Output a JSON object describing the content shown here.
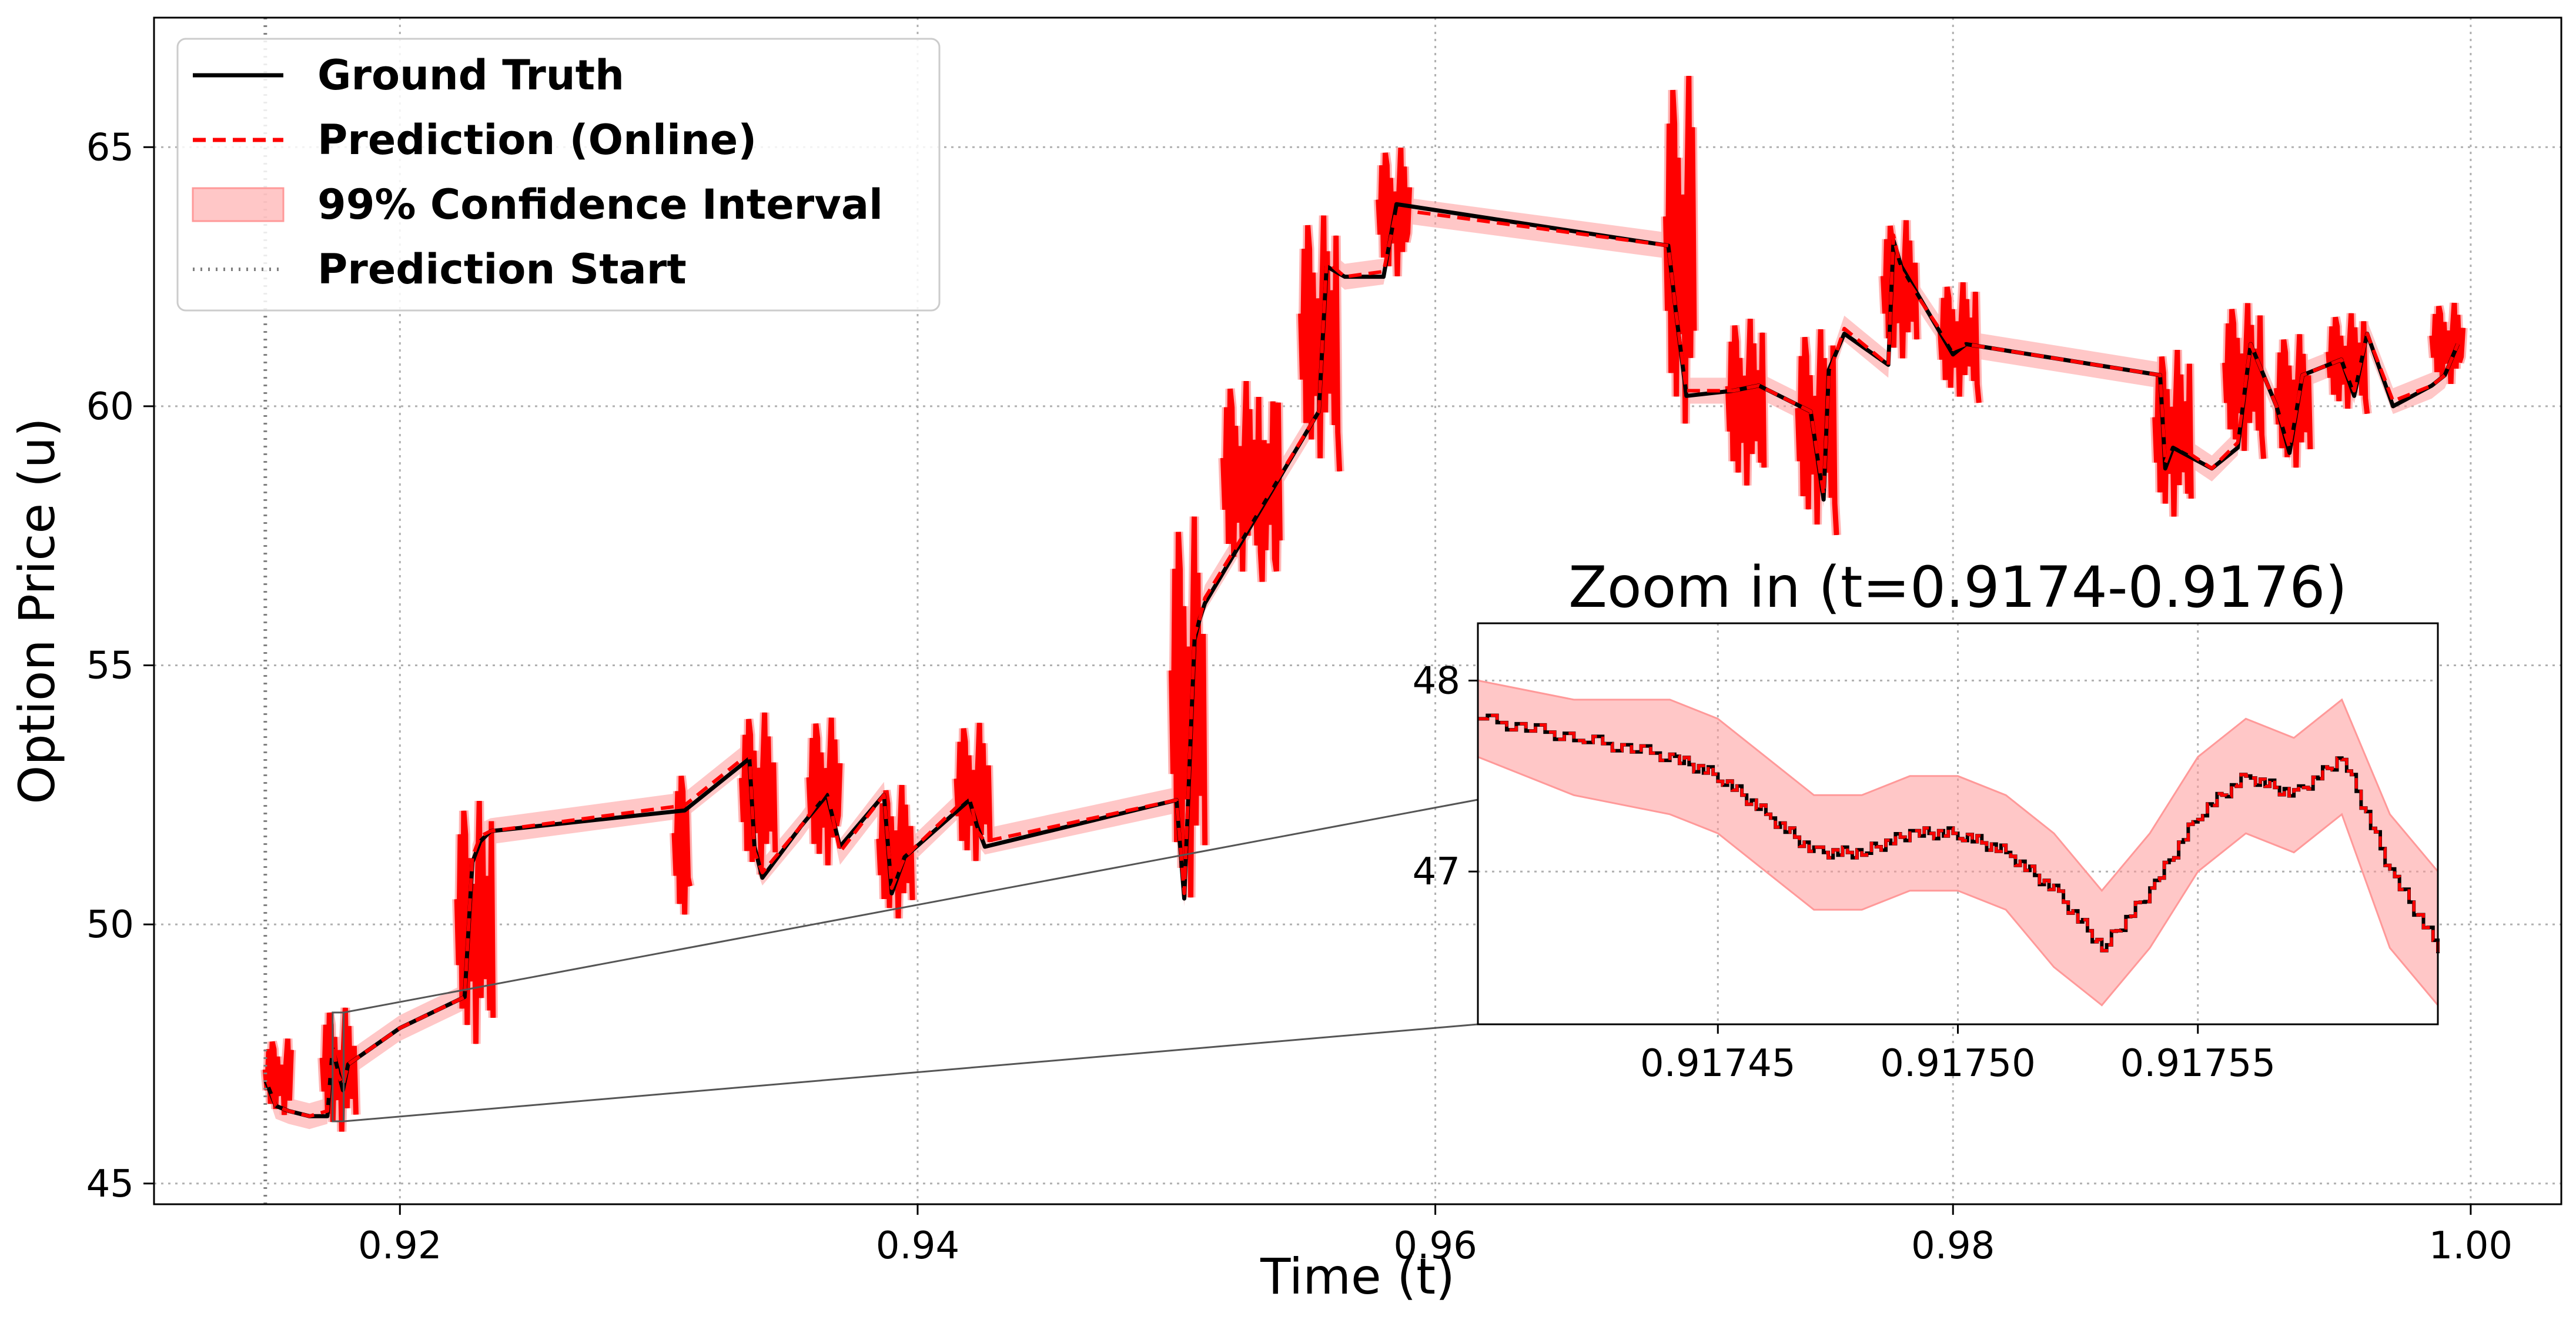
{
  "chart_data": [
    {
      "type": "line",
      "title": "",
      "xlabel": "Time (t)",
      "ylabel": "Option Price (u)",
      "xlim": [
        0.9105,
        1.0035
      ],
      "ylim": [
        44.6,
        67.5
      ],
      "xticks": [
        0.92,
        0.94,
        0.96,
        0.98,
        1.0
      ],
      "xtick_labels": [
        "0.92",
        "0.94",
        "0.96",
        "0.98",
        "1.00"
      ],
      "yticks": [
        45,
        50,
        55,
        60,
        65
      ],
      "ytick_labels": [
        "45",
        "50",
        "55",
        "60",
        "65"
      ],
      "grid": true,
      "legend_position": "top-left",
      "prediction_start": 0.9148,
      "legend": [
        "Ground Truth",
        "Prediction (Online)",
        "99% Confidence Interval",
        "Prediction Start"
      ],
      "series": [
        {
          "name": "Ground Truth",
          "color": "#000000",
          "x": [
            0.9148,
            0.9152,
            0.9157,
            0.9165,
            0.9172,
            0.9174,
            0.9176,
            0.9178,
            0.918,
            0.92,
            0.9225,
            0.9228,
            0.9231,
            0.9235,
            0.931,
            0.9335,
            0.9337,
            0.934,
            0.9355,
            0.9365,
            0.937,
            0.9387,
            0.939,
            0.9395,
            0.942,
            0.9423,
            0.9426,
            0.95,
            0.9503,
            0.9507,
            0.9509,
            0.9511,
            0.9555,
            0.9558,
            0.9565,
            0.958,
            0.9585,
            0.969,
            0.9693,
            0.9697,
            0.9715,
            0.9725,
            0.9745,
            0.975,
            0.9752,
            0.9758,
            0.9775,
            0.9777,
            0.978,
            0.98,
            0.9805,
            0.988,
            0.9882,
            0.9885,
            0.99,
            0.991,
            0.9915,
            0.9925,
            0.993,
            0.9935,
            0.995,
            0.9955,
            0.996,
            0.997,
            0.9985,
            0.999,
            0.9995
          ],
          "values": [
            47.0,
            46.5,
            46.4,
            46.3,
            46.3,
            47.6,
            47.2,
            46.8,
            47.3,
            48.0,
            48.6,
            51.2,
            51.6,
            51.8,
            52.2,
            53.2,
            51.5,
            50.9,
            51.9,
            52.5,
            51.5,
            52.5,
            50.6,
            51.3,
            52.4,
            51.9,
            51.5,
            52.4,
            50.5,
            55.5,
            55.9,
            56.2,
            59.9,
            62.7,
            62.5,
            62.5,
            63.9,
            63.1,
            61.8,
            60.2,
            60.3,
            60.4,
            59.9,
            58.2,
            60.7,
            61.4,
            60.8,
            63.2,
            62.7,
            61.0,
            61.2,
            60.6,
            58.8,
            59.2,
            58.8,
            59.2,
            61.2,
            60.0,
            59.1,
            60.6,
            60.9,
            60.2,
            61.4,
            60.0,
            60.4,
            60.6,
            61.2
          ]
        },
        {
          "name": "Prediction (Online)",
          "color": "#ff0000",
          "x": [
            0.9148,
            0.9152,
            0.9157,
            0.9165,
            0.9172,
            0.9174,
            0.9176,
            0.9178,
            0.918,
            0.92,
            0.9225,
            0.9228,
            0.9231,
            0.9235,
            0.931,
            0.9335,
            0.9337,
            0.934,
            0.9355,
            0.9365,
            0.937,
            0.9387,
            0.939,
            0.9395,
            0.942,
            0.9423,
            0.9426,
            0.95,
            0.9503,
            0.9507,
            0.9509,
            0.9511,
            0.9555,
            0.9558,
            0.9565,
            0.958,
            0.9585,
            0.969,
            0.9693,
            0.9697,
            0.9715,
            0.9725,
            0.9745,
            0.975,
            0.9752,
            0.9758,
            0.9775,
            0.9777,
            0.978,
            0.98,
            0.9805,
            0.988,
            0.9882,
            0.9885,
            0.99,
            0.991,
            0.9915,
            0.9925,
            0.993,
            0.9935,
            0.995,
            0.9955,
            0.996,
            0.997,
            0.9985,
            0.999,
            0.9995
          ],
          "values": [
            47.1,
            46.5,
            46.4,
            46.3,
            46.4,
            47.7,
            47.1,
            46.9,
            47.3,
            48.0,
            48.6,
            51.3,
            51.7,
            51.8,
            52.3,
            53.3,
            51.4,
            51.0,
            51.9,
            52.6,
            51.4,
            52.5,
            50.7,
            51.3,
            52.5,
            51.8,
            51.6,
            52.4,
            50.6,
            55.6,
            55.9,
            56.3,
            59.9,
            62.8,
            62.5,
            62.6,
            63.8,
            63.1,
            61.8,
            60.3,
            60.3,
            60.4,
            59.9,
            58.3,
            60.6,
            61.5,
            60.8,
            63.3,
            62.6,
            61.1,
            61.2,
            60.6,
            58.9,
            59.3,
            58.8,
            59.3,
            61.2,
            60.0,
            59.2,
            60.6,
            60.9,
            60.3,
            61.4,
            60.1,
            60.4,
            60.6,
            61.2
          ]
        }
      ],
      "volatile_segments": [
        {
          "x0": 0.9148,
          "x1": 0.9158,
          "ymin": 46.2,
          "ymax": 47.8
        },
        {
          "x0": 0.917,
          "x1": 0.9183,
          "ymin": 45.8,
          "ymax": 48.4
        },
        {
          "x0": 0.9222,
          "x1": 0.9236,
          "ymin": 47.3,
          "ymax": 52.4
        },
        {
          "x0": 0.9306,
          "x1": 0.9312,
          "ymin": 49.7,
          "ymax": 53.0
        },
        {
          "x0": 0.9332,
          "x1": 0.9345,
          "ymin": 50.7,
          "ymax": 54.1
        },
        {
          "x0": 0.9358,
          "x1": 0.937,
          "ymin": 50.9,
          "ymax": 54.0
        },
        {
          "x0": 0.9385,
          "x1": 0.9398,
          "ymin": 49.9,
          "ymax": 52.7
        },
        {
          "x0": 0.9415,
          "x1": 0.9428,
          "ymin": 51.0,
          "ymax": 53.9
        },
        {
          "x0": 0.9498,
          "x1": 0.9511,
          "ymin": 49.9,
          "ymax": 57.9
        },
        {
          "x0": 0.9518,
          "x1": 0.954,
          "ymin": 56.5,
          "ymax": 60.5
        },
        {
          "x0": 0.9548,
          "x1": 0.9563,
          "ymin": 58.6,
          "ymax": 63.7
        },
        {
          "x0": 0.9578,
          "x1": 0.959,
          "ymin": 62.3,
          "ymax": 65.0
        },
        {
          "x0": 0.9689,
          "x1": 0.97,
          "ymin": 59.1,
          "ymax": 66.4
        },
        {
          "x0": 0.9713,
          "x1": 0.9727,
          "ymin": 58.2,
          "ymax": 61.7
        },
        {
          "x0": 0.974,
          "x1": 0.9755,
          "ymin": 57.4,
          "ymax": 61.5
        },
        {
          "x0": 0.9773,
          "x1": 0.9786,
          "ymin": 60.7,
          "ymax": 63.6
        },
        {
          "x0": 0.9795,
          "x1": 0.981,
          "ymin": 60.0,
          "ymax": 62.4
        },
        {
          "x0": 0.9878,
          "x1": 0.9892,
          "ymin": 57.6,
          "ymax": 61.1
        },
        {
          "x0": 0.9905,
          "x1": 0.992,
          "ymin": 58.9,
          "ymax": 62.0
        },
        {
          "x0": 0.9925,
          "x1": 0.9938,
          "ymin": 58.6,
          "ymax": 61.4
        },
        {
          "x0": 0.9945,
          "x1": 0.996,
          "ymin": 59.8,
          "ymax": 61.8
        },
        {
          "x0": 0.9985,
          "x1": 0.9997,
          "ymin": 60.3,
          "ymax": 62.0
        }
      ],
      "zoom_region": {
        "x0": 0.9174,
        "x1": 0.9176,
        "y0": 46.2,
        "y1": 48.3
      }
    },
    {
      "type": "line",
      "title": "Zoom in (t=0.9174-0.9176)",
      "xlabel": "",
      "ylabel": "",
      "xlim": [
        0.9174,
        0.9176
      ],
      "ylim": [
        46.2,
        48.3
      ],
      "xticks": [
        0.91745,
        0.9175,
        0.91755
      ],
      "xtick_labels": [
        "0.91745",
        "0.91750",
        "0.91755"
      ],
      "yticks": [
        47,
        48
      ],
      "ytick_labels": [
        "47",
        "48"
      ],
      "grid": true,
      "x": [
        0.9174,
        0.91742,
        0.91744,
        0.91745,
        0.91746,
        0.91747,
        0.91748,
        0.91749,
        0.9175,
        0.91751,
        0.91752,
        0.91753,
        0.91754,
        0.91755,
        0.91756,
        0.91757,
        0.91758,
        0.91759,
        0.9176
      ],
      "series": [
        {
          "name": "Ground Truth",
          "color": "#000000",
          "values": [
            47.8,
            47.7,
            47.6,
            47.5,
            47.3,
            47.1,
            47.1,
            47.2,
            47.2,
            47.1,
            46.9,
            46.6,
            46.9,
            47.3,
            47.5,
            47.4,
            47.6,
            47.0,
            46.6
          ]
        },
        {
          "name": "Prediction (Online)",
          "color": "#ff0000",
          "values": [
            47.8,
            47.7,
            47.6,
            47.5,
            47.3,
            47.1,
            47.1,
            47.2,
            47.2,
            47.1,
            46.9,
            46.6,
            46.9,
            47.3,
            47.5,
            47.4,
            47.6,
            47.0,
            46.6
          ]
        },
        {
          "name": "99% Confidence Interval",
          "color": "#ff9999",
          "lower": [
            47.6,
            47.4,
            47.3,
            47.2,
            47.0,
            46.8,
            46.8,
            46.9,
            46.9,
            46.8,
            46.5,
            46.3,
            46.6,
            47.0,
            47.2,
            47.1,
            47.3,
            46.6,
            46.3
          ],
          "upper": [
            48.0,
            47.9,
            47.9,
            47.8,
            47.6,
            47.4,
            47.4,
            47.5,
            47.5,
            47.4,
            47.2,
            46.9,
            47.2,
            47.6,
            47.8,
            47.7,
            47.9,
            47.3,
            47.0
          ]
        }
      ]
    }
  ],
  "colors": {
    "ground_truth": "#000000",
    "prediction": "#ff0000",
    "confidence": "#ff9999",
    "prediction_start": "#808080",
    "grid": "#b0b0b0"
  }
}
